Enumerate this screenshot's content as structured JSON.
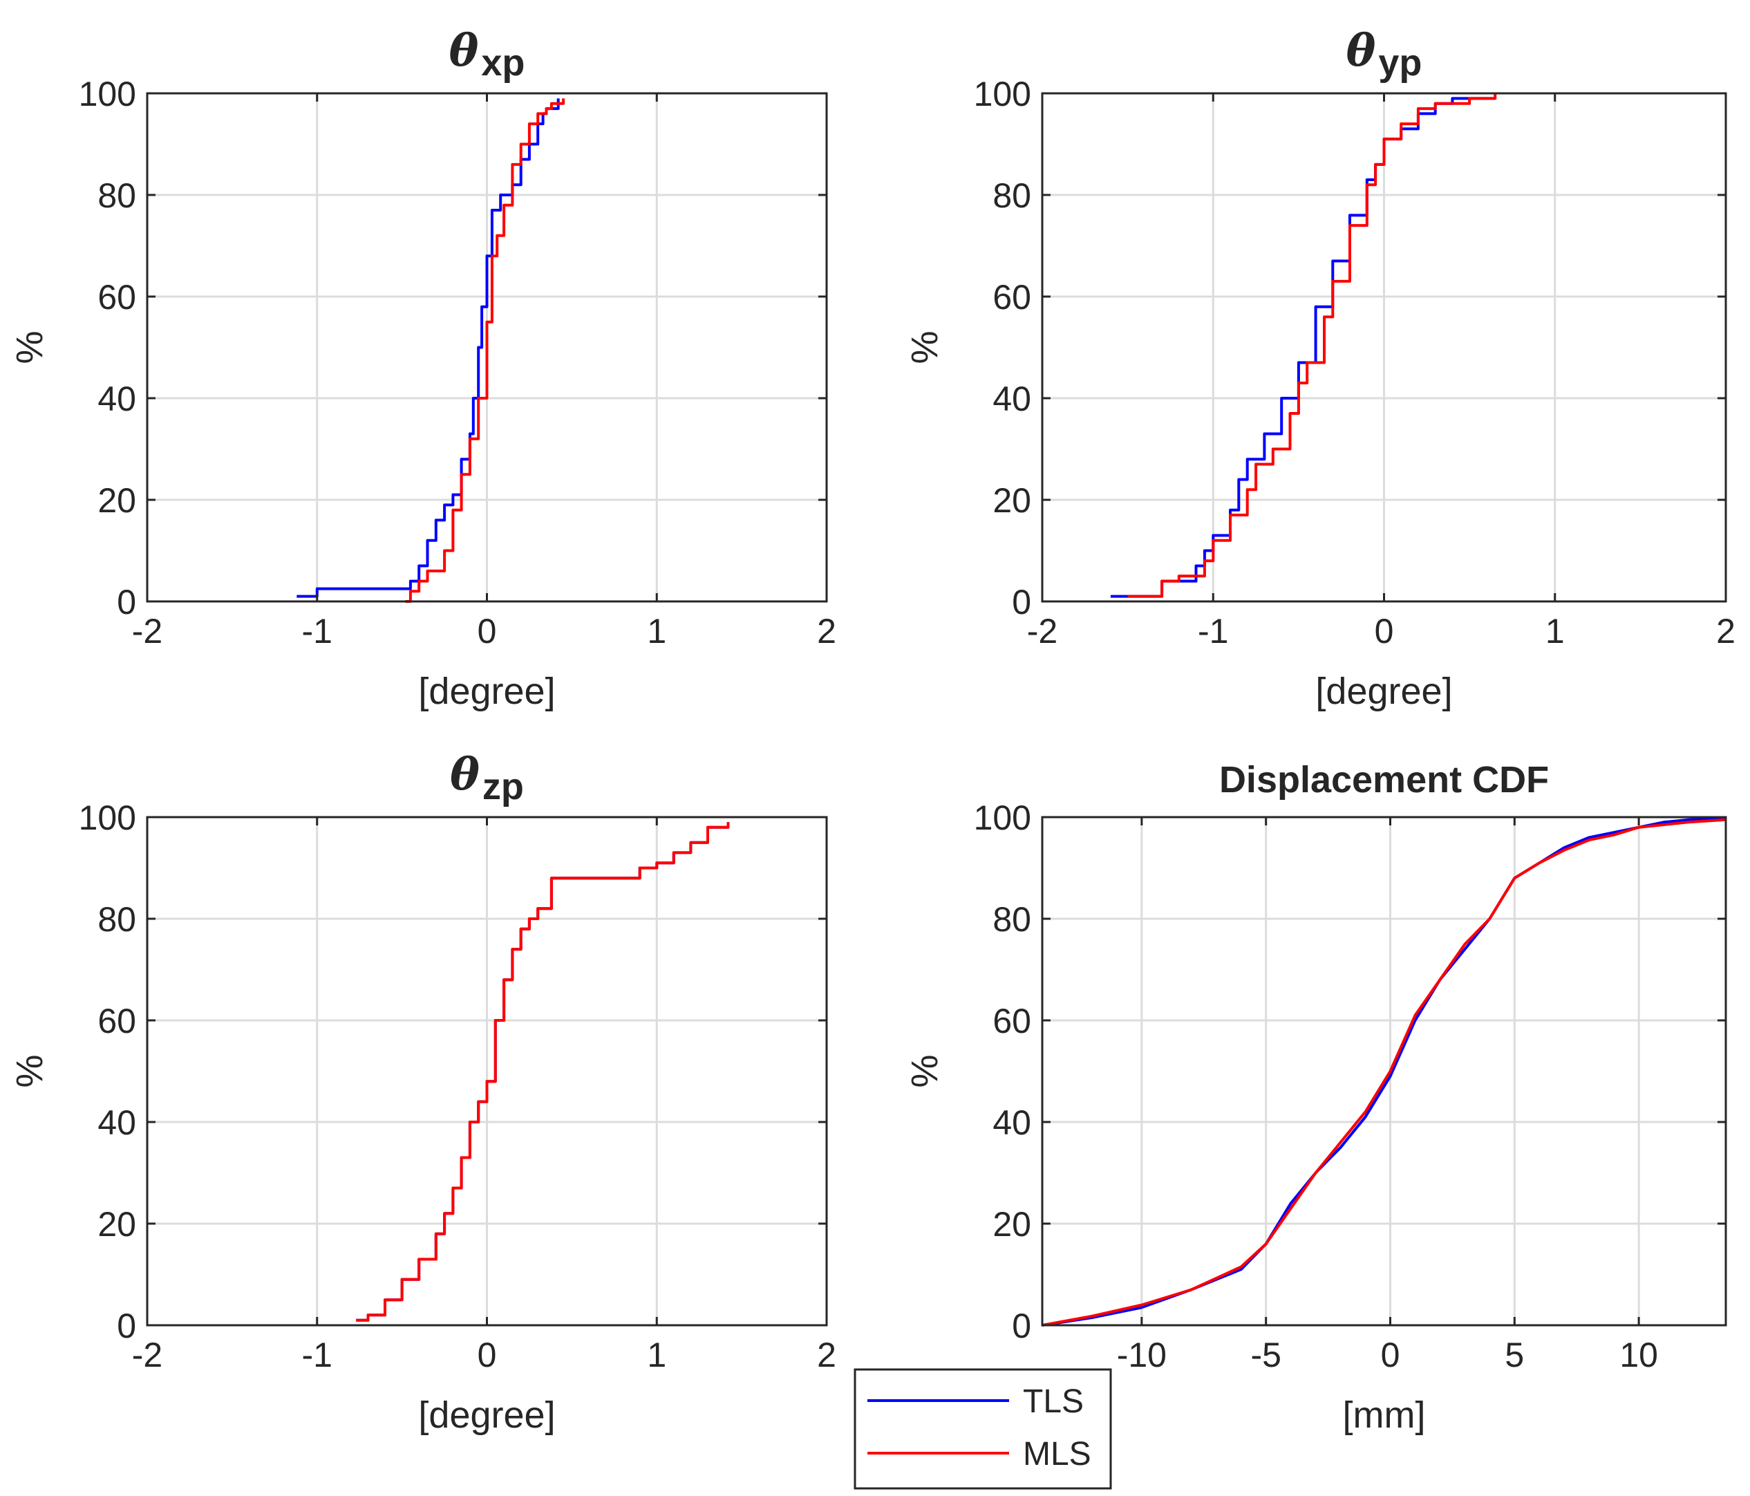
{
  "chart_data": [
    {
      "type": "line",
      "id": "xp",
      "title_symbol": "θ",
      "title_subscript": "xp",
      "xlabel": "[degree]",
      "ylabel": "%",
      "xlim": [
        -2,
        2
      ],
      "ylim": [
        0,
        100
      ],
      "xticks": [
        -2,
        -1,
        0,
        1,
        2
      ],
      "xtick_labels": [
        "-2",
        "-1",
        "0",
        "1",
        "2"
      ],
      "yticks": [
        0,
        20,
        40,
        60,
        80,
        100
      ],
      "ytick_labels": [
        "0",
        "20",
        "40",
        "60",
        "80",
        "100"
      ],
      "grid": true,
      "series": [
        {
          "name": "TLS",
          "color": "#0000ff",
          "step": true,
          "x": [
            -1.12,
            -1.0,
            -0.45,
            -0.4,
            -0.35,
            -0.3,
            -0.25,
            -0.2,
            -0.15,
            -0.1,
            -0.08,
            -0.05,
            -0.03,
            0.0,
            0.03,
            0.08,
            0.15,
            0.2,
            0.25,
            0.3,
            0.33,
            0.35,
            0.42
          ],
          "y": [
            1,
            2.5,
            4,
            7,
            12,
            16,
            19,
            21,
            28,
            33,
            40,
            50,
            58,
            68,
            77,
            80,
            82,
            87,
            90,
            94,
            96,
            97,
            99
          ]
        },
        {
          "name": "MLS",
          "color": "#ff0000",
          "step": true,
          "x": [
            -0.48,
            -0.45,
            -0.4,
            -0.35,
            -0.25,
            -0.2,
            -0.15,
            -0.1,
            -0.05,
            0.0,
            0.03,
            0.06,
            0.1,
            0.15,
            0.2,
            0.25,
            0.3,
            0.35,
            0.38,
            0.45
          ],
          "y": [
            0,
            2,
            4,
            6,
            10,
            18,
            25,
            32,
            40,
            55,
            68,
            72,
            78,
            86,
            90,
            94,
            96,
            97,
            98,
            99
          ]
        }
      ]
    },
    {
      "type": "line",
      "id": "yp",
      "title_symbol": "θ",
      "title_subscript": "yp",
      "xlabel": "[degree]",
      "ylabel": "%",
      "xlim": [
        -2,
        2
      ],
      "ylim": [
        0,
        100
      ],
      "xticks": [
        -2,
        -1,
        0,
        1,
        2
      ],
      "xtick_labels": [
        "-2",
        "-1",
        "0",
        "1",
        "2"
      ],
      "yticks": [
        0,
        20,
        40,
        60,
        80,
        100
      ],
      "ytick_labels": [
        "0",
        "20",
        "40",
        "60",
        "80",
        "100"
      ],
      "grid": true,
      "series": [
        {
          "name": "TLS",
          "color": "#0000ff",
          "step": true,
          "x": [
            -1.6,
            -1.5,
            -1.3,
            -1.1,
            -1.05,
            -1.0,
            -0.9,
            -0.85,
            -0.8,
            -0.7,
            -0.6,
            -0.5,
            -0.4,
            -0.3,
            -0.2,
            -0.1,
            -0.05,
            0.0,
            0.1,
            0.2,
            0.3,
            0.4,
            0.65
          ],
          "y": [
            1,
            1,
            4,
            7,
            10,
            13,
            18,
            24,
            28,
            33,
            40,
            47,
            58,
            67,
            76,
            83,
            86,
            91,
            93,
            96,
            98,
            99,
            99
          ]
        },
        {
          "name": "MLS",
          "color": "#ff0000",
          "step": true,
          "x": [
            -1.5,
            -1.3,
            -1.2,
            -1.05,
            -1.0,
            -0.9,
            -0.8,
            -0.75,
            -0.65,
            -0.55,
            -0.5,
            -0.45,
            -0.35,
            -0.3,
            -0.2,
            -0.1,
            -0.05,
            0.0,
            0.1,
            0.2,
            0.3,
            0.5,
            0.65
          ],
          "y": [
            1,
            4,
            5,
            8,
            12,
            17,
            22,
            27,
            30,
            37,
            43,
            47,
            56,
            63,
            74,
            82,
            86,
            91,
            94,
            97,
            98,
            99,
            100
          ]
        }
      ]
    },
    {
      "type": "line",
      "id": "zp",
      "title_symbol": "θ",
      "title_subscript": "zp",
      "xlabel": "[degree]",
      "ylabel": "%",
      "xlim": [
        -2,
        2
      ],
      "ylim": [
        0,
        100
      ],
      "xticks": [
        -2,
        -1,
        0,
        1,
        2
      ],
      "xtick_labels": [
        "-2",
        "-1",
        "0",
        "1",
        "2"
      ],
      "yticks": [
        0,
        20,
        40,
        60,
        80,
        100
      ],
      "ytick_labels": [
        "0",
        "20",
        "40",
        "60",
        "80",
        "100"
      ],
      "grid": true,
      "series": [
        {
          "name": "TLS",
          "color": "#0000ff",
          "step": true,
          "x": [
            -0.77,
            -0.7,
            -0.6,
            -0.5,
            -0.4,
            -0.3,
            -0.25,
            -0.2,
            -0.15,
            -0.1,
            -0.05,
            0.0,
            0.05,
            0.1,
            0.15,
            0.2,
            0.25,
            0.3,
            0.38,
            0.5,
            0.8,
            0.9,
            1.0,
            1.1,
            1.2,
            1.3,
            1.42
          ],
          "y": [
            1,
            2,
            5,
            9,
            13,
            18,
            22,
            27,
            33,
            40,
            44,
            48,
            60,
            68,
            74,
            78,
            80,
            82,
            88,
            88,
            88,
            90,
            91,
            93,
            95,
            98,
            99
          ]
        },
        {
          "name": "MLS",
          "color": "#ff0000",
          "step": true,
          "x": [
            -0.77,
            -0.7,
            -0.6,
            -0.5,
            -0.4,
            -0.3,
            -0.25,
            -0.2,
            -0.15,
            -0.1,
            -0.05,
            0.0,
            0.05,
            0.1,
            0.15,
            0.2,
            0.25,
            0.3,
            0.38,
            0.5,
            0.8,
            0.9,
            1.0,
            1.1,
            1.2,
            1.3,
            1.42
          ],
          "y": [
            1,
            2,
            5,
            9,
            13,
            18,
            22,
            27,
            33,
            40,
            44,
            48,
            60,
            68,
            74,
            78,
            80,
            82,
            88,
            88,
            88,
            90,
            91,
            93,
            95,
            98,
            99
          ]
        }
      ]
    },
    {
      "type": "line",
      "id": "disp",
      "title": "Displacement CDF",
      "xlabel": "[mm]",
      "ylabel": "%",
      "xlim": [
        -14,
        13.5
      ],
      "ylim": [
        0,
        100
      ],
      "xticks": [
        -10,
        -5,
        0,
        5,
        10
      ],
      "xtick_labels": [
        "-10",
        "-5",
        "0",
        "5",
        "10"
      ],
      "yticks": [
        0,
        20,
        40,
        60,
        80,
        100
      ],
      "ytick_labels": [
        "0",
        "20",
        "40",
        "60",
        "80",
        "100"
      ],
      "grid": true,
      "series": [
        {
          "name": "TLS",
          "color": "#0000ff",
          "step": false,
          "x": [
            -14,
            -12,
            -10,
            -8,
            -6,
            -5,
            -4,
            -3,
            -2,
            -1,
            0,
            1,
            2,
            3,
            4,
            5,
            6,
            7,
            8,
            9,
            10,
            11,
            12,
            13.5
          ],
          "y": [
            0,
            1.5,
            3.5,
            7,
            11,
            16,
            24,
            30,
            35,
            41,
            49,
            60,
            68,
            74,
            80,
            88,
            91,
            94,
            96,
            97,
            98,
            99,
            99.5,
            99.8
          ]
        },
        {
          "name": "MLS",
          "color": "#ff0000",
          "step": false,
          "x": [
            -14,
            -12,
            -10,
            -8,
            -6,
            -5,
            -4,
            -3,
            -2,
            -1,
            0,
            1,
            2,
            3,
            4,
            5,
            6,
            7,
            8,
            9,
            10,
            11,
            12,
            13.5
          ],
          "y": [
            0,
            1.8,
            4,
            7,
            11.5,
            16,
            23,
            30,
            36,
            42,
            50,
            61,
            68,
            75,
            80,
            88,
            91,
            93.5,
            95.5,
            96.5,
            98,
            98.5,
            99,
            99.5
          ]
        }
      ]
    }
  ],
  "legend": {
    "placement": "bottom-center",
    "entries": [
      {
        "label": "TLS",
        "color": "#0000ff"
      },
      {
        "label": "MLS",
        "color": "#ff0000"
      }
    ]
  }
}
